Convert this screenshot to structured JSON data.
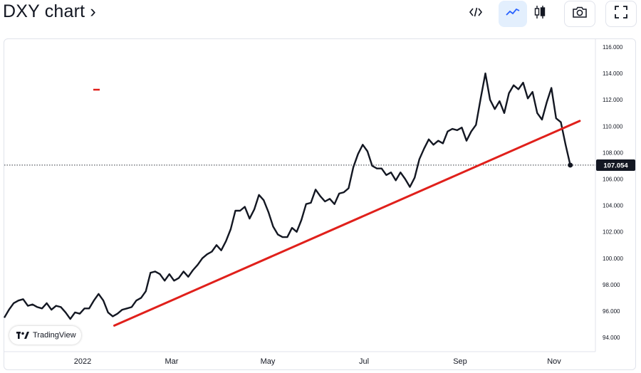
{
  "header": {
    "title": "DXY chart ›"
  },
  "toolbar": {
    "embed_icon": "code-embed-icon",
    "line_icon": "line-chart-icon",
    "candle_icon": "candlestick-icon",
    "camera_icon": "camera-icon",
    "fullscreen_icon": "fullscreen-icon",
    "active_color": "#2962ff"
  },
  "watermark": {
    "text": "TradingView"
  },
  "chart_data": {
    "type": "line",
    "title": "DXY",
    "xlabel": "",
    "ylabel": "",
    "ylim": [
      93.5,
      117
    ],
    "x_ticks": [
      "2022",
      "Mar",
      "May",
      "Jul",
      "Sep",
      "Nov"
    ],
    "y_ticks": [
      "94.000",
      "96.000",
      "98.000",
      "100.000",
      "102.000",
      "104.000",
      "106.000",
      "108.000",
      "110.000",
      "112.000",
      "114.000",
      "116.000"
    ],
    "last_value_label": "107.054",
    "last_value": 107.054,
    "colors": {
      "price": "#131722",
      "trendline": "#e0201b",
      "badge": "#131722"
    },
    "series": [
      {
        "values": [
          [
            0,
            95.5
          ],
          [
            3,
            96.1
          ],
          [
            6,
            96.6
          ],
          [
            9,
            96.8
          ],
          [
            12,
            96.9
          ],
          [
            15,
            96.4
          ],
          [
            18,
            96.5
          ],
          [
            21,
            96.3
          ],
          [
            24,
            96.2
          ],
          [
            27,
            96.6
          ],
          [
            30,
            96.1
          ],
          [
            33,
            96.4
          ],
          [
            36,
            96.3
          ],
          [
            39,
            95.9
          ],
          [
            42,
            95.4
          ],
          [
            45,
            95.9
          ],
          [
            48,
            95.8
          ],
          [
            51,
            96.2
          ],
          [
            54,
            96.2
          ],
          [
            57,
            96.8
          ],
          [
            60,
            97.3
          ],
          [
            63,
            96.8
          ],
          [
            66,
            95.9
          ],
          [
            69,
            95.6
          ],
          [
            72,
            95.8
          ],
          [
            75,
            96.1
          ],
          [
            78,
            96.2
          ],
          [
            81,
            96.3
          ],
          [
            84,
            96.8
          ],
          [
            87,
            97.0
          ],
          [
            90,
            97.5
          ],
          [
            93,
            98.9
          ],
          [
            96,
            99.0
          ],
          [
            99,
            98.8
          ],
          [
            102,
            98.3
          ],
          [
            105,
            98.8
          ],
          [
            108,
            98.3
          ],
          [
            111,
            98.5
          ],
          [
            114,
            99.0
          ],
          [
            117,
            98.6
          ],
          [
            120,
            99.1
          ],
          [
            123,
            99.5
          ],
          [
            126,
            100.0
          ],
          [
            129,
            100.3
          ],
          [
            132,
            100.5
          ],
          [
            135,
            101.0
          ],
          [
            138,
            100.6
          ],
          [
            141,
            101.3
          ],
          [
            144,
            102.2
          ],
          [
            147,
            103.6
          ],
          [
            150,
            103.6
          ],
          [
            153,
            103.9
          ],
          [
            156,
            103.0
          ],
          [
            159,
            103.7
          ],
          [
            162,
            104.8
          ],
          [
            165,
            104.4
          ],
          [
            168,
            103.5
          ],
          [
            171,
            102.4
          ],
          [
            174,
            101.8
          ],
          [
            177,
            101.6
          ],
          [
            180,
            101.6
          ],
          [
            183,
            102.3
          ],
          [
            186,
            102.0
          ],
          [
            189,
            102.9
          ],
          [
            192,
            104.1
          ],
          [
            195,
            104.2
          ],
          [
            198,
            105.2
          ],
          [
            201,
            104.7
          ],
          [
            204,
            104.3
          ],
          [
            207,
            104.5
          ],
          [
            210,
            104.1
          ],
          [
            213,
            104.9
          ],
          [
            216,
            105.0
          ],
          [
            219,
            105.3
          ],
          [
            222,
            106.9
          ],
          [
            225,
            107.9
          ],
          [
            228,
            108.6
          ],
          [
            231,
            108.1
          ],
          [
            234,
            107.0
          ],
          [
            237,
            106.8
          ],
          [
            240,
            106.8
          ],
          [
            243,
            106.3
          ],
          [
            246,
            106.5
          ],
          [
            249,
            105.9
          ],
          [
            252,
            106.5
          ],
          [
            255,
            106.0
          ],
          [
            258,
            105.4
          ],
          [
            261,
            106.1
          ],
          [
            264,
            107.5
          ],
          [
            267,
            108.3
          ],
          [
            270,
            109.0
          ],
          [
            273,
            108.6
          ],
          [
            276,
            108.9
          ],
          [
            279,
            108.7
          ],
          [
            282,
            109.6
          ],
          [
            285,
            109.8
          ],
          [
            288,
            109.7
          ],
          [
            291,
            109.9
          ],
          [
            294,
            108.9
          ],
          [
            297,
            109.6
          ],
          [
            300,
            110.1
          ],
          [
            303,
            112.1
          ],
          [
            306,
            114.0
          ],
          [
            309,
            112.0
          ],
          [
            312,
            111.3
          ],
          [
            315,
            111.9
          ],
          [
            318,
            111.0
          ],
          [
            321,
            112.5
          ],
          [
            324,
            113.1
          ],
          [
            327,
            112.8
          ],
          [
            330,
            113.3
          ],
          [
            333,
            112.1
          ],
          [
            336,
            112.6
          ],
          [
            339,
            111.0
          ],
          [
            342,
            110.5
          ],
          [
            345,
            111.8
          ],
          [
            348,
            112.9
          ],
          [
            351,
            110.6
          ],
          [
            354,
            110.3
          ],
          [
            357,
            108.6
          ],
          [
            360,
            107.054
          ]
        ]
      }
    ],
    "trendline": {
      "from": [
        70,
        94.9
      ],
      "to": [
        366,
        110.4
      ]
    }
  }
}
